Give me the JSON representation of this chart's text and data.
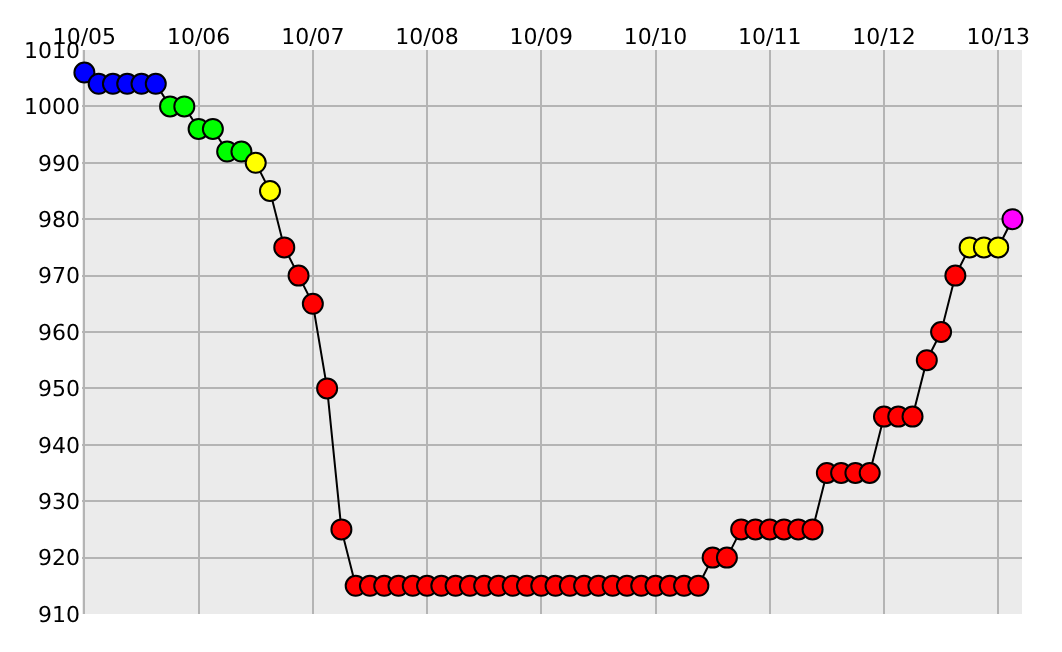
{
  "chart_data": {
    "type": "line",
    "x": [
      "--10-05T00:00",
      "--10-05T03:00",
      "--10-05T06:00",
      "--10-05T09:00",
      "--10-05T12:00",
      "--10-05T15:00",
      "--10-05T18:00",
      "--10-05T21:00",
      "--10-06T00:00",
      "--10-06T03:00",
      "--10-06T06:00",
      "--10-06T09:00",
      "--10-06T12:00",
      "--10-06T15:00",
      "--10-06T18:00",
      "--10-06T21:00",
      "--10-07T00:00",
      "--10-07T03:00",
      "--10-07T06:00",
      "--10-07T09:00",
      "--10-07T12:00",
      "--10-07T15:00",
      "--10-07T18:00",
      "--10-07T21:00",
      "--10-08T00:00",
      "--10-08T03:00",
      "--10-08T06:00",
      "--10-08T09:00",
      "--10-08T12:00",
      "--10-08T15:00",
      "--10-08T18:00",
      "--10-08T21:00",
      "--10-09T00:00",
      "--10-09T03:00",
      "--10-09T06:00",
      "--10-09T09:00",
      "--10-09T12:00",
      "--10-09T15:00",
      "--10-09T18:00",
      "--10-09T21:00",
      "--10-10T00:00",
      "--10-10T03:00",
      "--10-10T06:00",
      "--10-10T09:00",
      "--10-10T12:00",
      "--10-10T15:00",
      "--10-10T18:00",
      "--10-10T21:00",
      "--10-11T00:00",
      "--10-11T03:00",
      "--10-11T06:00",
      "--10-11T09:00",
      "--10-11T12:00",
      "--10-11T15:00",
      "--10-11T18:00",
      "--10-11T21:00",
      "--10-12T00:00",
      "--10-12T03:00",
      "--10-12T06:00",
      "--10-12T09:00",
      "--10-12T12:00",
      "--10-12T15:00",
      "--10-12T18:00",
      "--10-12T21:00",
      "--10-13T00:00",
      "--10-13T03:00"
    ],
    "series": [
      {
        "color": "#000000",
        "values": [
          1006,
          1004,
          1004,
          1004,
          1004,
          1004,
          1000,
          1000,
          996,
          996,
          992,
          992,
          990,
          985,
          975,
          970,
          965,
          950,
          925,
          915,
          915,
          915,
          915,
          915,
          915,
          915,
          915,
          915,
          915,
          915,
          915,
          915,
          915,
          915,
          915,
          915,
          915,
          915,
          915,
          915,
          915,
          915,
          915,
          915,
          920,
          920,
          925,
          925,
          925,
          925,
          925,
          925,
          935,
          935,
          935,
          935,
          945,
          945,
          945,
          955,
          960,
          970,
          975,
          975,
          975,
          980
        ],
        "colors": [
          "#0000ff",
          "#0000ff",
          "#0000ff",
          "#0000ff",
          "#0000ff",
          "#0000ff",
          "#00ff00",
          "#00ff00",
          "#00ff00",
          "#00ff00",
          "#00ff00",
          "#00ff00",
          "#ffff00",
          "#ffff00",
          "#ff0000",
          "#ff0000",
          "#ff0000",
          "#ff0000",
          "#ff0000",
          "#ff0000",
          "#ff0000",
          "#ff0000",
          "#ff0000",
          "#ff0000",
          "#ff0000",
          "#ff0000",
          "#ff0000",
          "#ff0000",
          "#ff0000",
          "#ff0000",
          "#ff0000",
          "#ff0000",
          "#ff0000",
          "#ff0000",
          "#ff0000",
          "#ff0000",
          "#ff0000",
          "#ff0000",
          "#ff0000",
          "#ff0000",
          "#ff0000",
          "#ff0000",
          "#ff0000",
          "#ff0000",
          "#ff0000",
          "#ff0000",
          "#ff0000",
          "#ff0000",
          "#ff0000",
          "#ff0000",
          "#ff0000",
          "#ff0000",
          "#ff0000",
          "#ff0000",
          "#ff0000",
          "#ff0000",
          "#ff0000",
          "#ff0000",
          "#ff0000",
          "#ff0000",
          "#ff0000",
          "#ff0000",
          "#ffff00",
          "#ffff00",
          "#ffff00",
          "#ff00ff"
        ]
      }
    ],
    "xlim": [
      "--10-04T23:30",
      "--10-13T05:00"
    ],
    "xticks": [
      {
        "value": "--10-05",
        "label": "10/05"
      },
      {
        "value": "--10-06",
        "label": "10/06"
      },
      {
        "value": "--10-07",
        "label": "10/07"
      },
      {
        "value": "--10-08",
        "label": "10/08"
      },
      {
        "value": "--10-09",
        "label": "10/09"
      },
      {
        "value": "--10-10",
        "label": "10/10"
      },
      {
        "value": "--10-11",
        "label": "10/11"
      },
      {
        "value": "--10-12",
        "label": "10/12"
      },
      {
        "value": "--10-13",
        "label": "10/13"
      }
    ],
    "ylim": [
      910,
      1010
    ],
    "yticks": [
      910,
      920,
      930,
      940,
      950,
      960,
      970,
      980,
      990,
      1000,
      1010
    ],
    "grid": true,
    "marker": "circle",
    "line_style": "solid"
  }
}
